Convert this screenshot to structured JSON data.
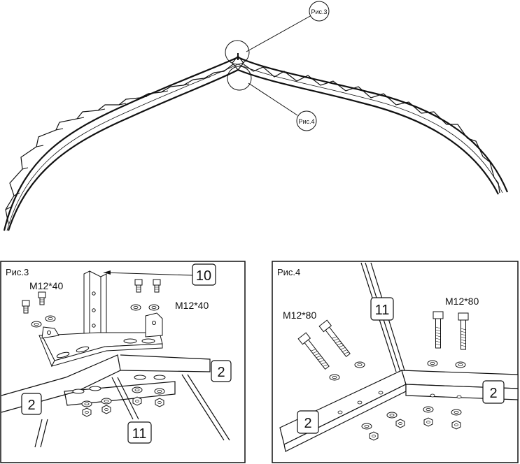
{
  "overview": {
    "callout_fig3": "Рис.3",
    "callout_fig4": "Рис.4"
  },
  "fig3": {
    "title": "Рис.3",
    "bolts_left_label": "M12*40",
    "bolts_right_label": "M12*40",
    "part_10": "10",
    "part_2_right": "2",
    "part_2_left": "2",
    "part_11": "11"
  },
  "fig4": {
    "title": "Рис.4",
    "bolts_left_label": "M12*80",
    "bolts_right_label": "M12*80",
    "part_11": "11",
    "part_2_right": "2",
    "part_2_left": "2"
  }
}
